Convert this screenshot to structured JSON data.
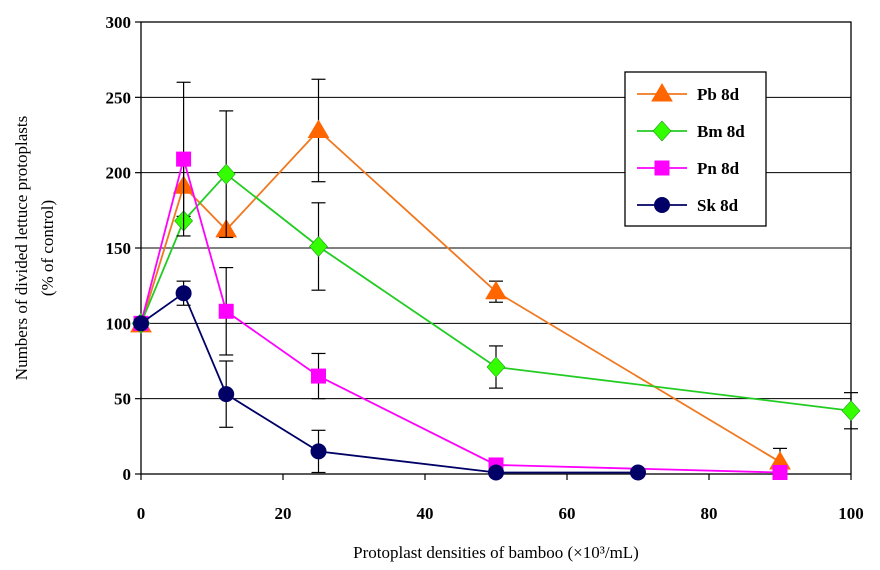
{
  "chart_data": {
    "type": "line",
    "xlabel": "Protoplast densities of bamboo (×10³/mL)",
    "ylabel_line1": "Numbers of divided lettuce protoplasts",
    "ylabel_line2": "(% of control)",
    "xlim": [
      0,
      100
    ],
    "ylim": [
      0,
      300
    ],
    "xticks": [
      0,
      20,
      40,
      60,
      80,
      100
    ],
    "yticks": [
      0,
      50,
      100,
      150,
      200,
      250,
      300
    ],
    "grid": "horizontal",
    "legend_position": "top-right",
    "series": [
      {
        "name": "Pb 8d",
        "color": "#FF6600",
        "marker": "triangle",
        "line_color": "#F07820",
        "x": [
          0,
          6,
          12,
          25,
          50,
          90
        ],
        "y": [
          99,
          191,
          162,
          228,
          121,
          8
        ],
        "err": [
          0,
          20,
          0,
          34,
          7,
          9
        ]
      },
      {
        "name": "Bm 8d",
        "color": "#33FF00",
        "marker": "diamond",
        "line_color": "#22CC22",
        "x": [
          0,
          6,
          12,
          25,
          50,
          100
        ],
        "y": [
          100,
          168,
          199,
          151,
          71,
          42
        ],
        "err": [
          0,
          0,
          42,
          29,
          14,
          12
        ]
      },
      {
        "name": "Pn 8d",
        "color": "#FF00FF",
        "marker": "square",
        "line_color": "#FF00FF",
        "x": [
          0,
          6,
          12,
          25,
          50,
          90
        ],
        "y": [
          100,
          209,
          108,
          65,
          6,
          1
        ],
        "err": [
          0,
          51,
          29,
          15,
          0,
          0
        ]
      },
      {
        "name": "Sk 8d",
        "color": "#000066",
        "marker": "circle",
        "line_color": "#000066",
        "x": [
          0,
          6,
          12,
          25,
          50,
          70
        ],
        "y": [
          100,
          120,
          53,
          15,
          1,
          1
        ],
        "err": [
          0,
          8,
          22,
          14,
          0,
          0
        ]
      }
    ]
  }
}
